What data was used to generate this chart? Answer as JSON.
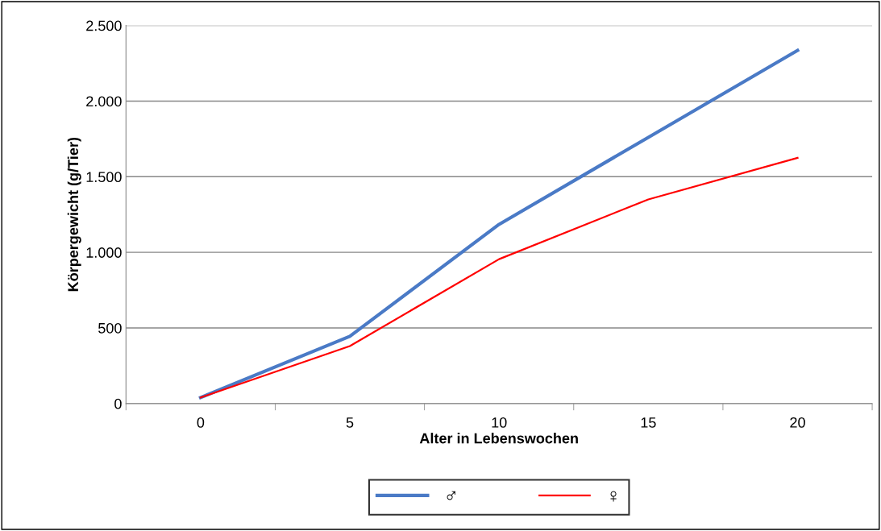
{
  "chart_data": {
    "type": "line",
    "xlabel": "Alter in Lebenswochen",
    "ylabel": "Körpergewicht (g/Tier)",
    "categories": [
      "0",
      "5",
      "10",
      "15",
      "20"
    ],
    "series": [
      {
        "name": "♂",
        "color": "#4a7ac6",
        "values": [
          40,
          445,
          1185,
          1760,
          2335
        ]
      },
      {
        "name": "♀",
        "color": "#ff0000",
        "values": [
          40,
          380,
          955,
          1350,
          1625
        ]
      }
    ],
    "ylim": [
      0,
      2500
    ],
    "yticks": [
      0,
      500,
      {
        "value": 1000,
        "label": "1.000"
      },
      {
        "value": 1500,
        "label": "1.500"
      },
      {
        "value": 2000,
        "label": "2.000"
      },
      {
        "value": 2500,
        "label": "2.500"
      }
    ],
    "grid": "y",
    "legend": "bottom",
    "marker": "none",
    "line_style": "solid"
  }
}
